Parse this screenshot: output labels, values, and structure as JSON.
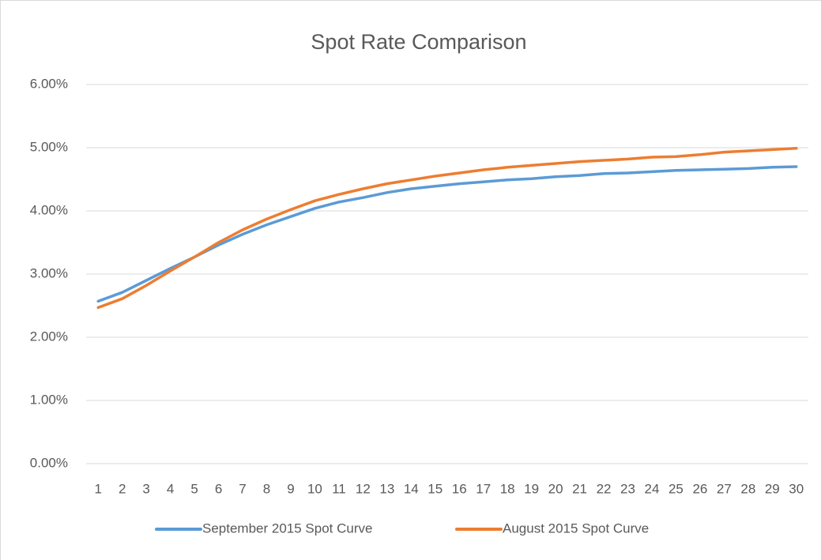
{
  "chart_data": {
    "type": "line",
    "title": "Spot Rate Comparison",
    "categories": [
      "1",
      "2",
      "3",
      "4",
      "5",
      "6",
      "7",
      "8",
      "9",
      "10",
      "11",
      "12",
      "13",
      "14",
      "15",
      "16",
      "17",
      "18",
      "19",
      "20",
      "21",
      "22",
      "23",
      "24",
      "25",
      "26",
      "27",
      "28",
      "29",
      "30"
    ],
    "series": [
      {
        "name": "September 2015 Spot Curve",
        "color": "#5b9bd5",
        "values": [
          2.57,
          2.71,
          2.9,
          3.09,
          3.27,
          3.46,
          3.63,
          3.78,
          3.91,
          4.04,
          4.14,
          4.21,
          4.29,
          4.35,
          4.39,
          4.43,
          4.46,
          4.49,
          4.51,
          4.54,
          4.56,
          4.59,
          4.6,
          4.62,
          4.64,
          4.65,
          4.66,
          4.67,
          4.69,
          4.7
        ]
      },
      {
        "name": "August 2015 Spot Curve",
        "color": "#ed7d31",
        "values": [
          2.47,
          2.61,
          2.82,
          3.05,
          3.27,
          3.5,
          3.7,
          3.87,
          4.02,
          4.16,
          4.26,
          4.35,
          4.43,
          4.49,
          4.55,
          4.6,
          4.65,
          4.69,
          4.72,
          4.75,
          4.78,
          4.8,
          4.82,
          4.85,
          4.86,
          4.89,
          4.93,
          4.95,
          4.97,
          4.99
        ]
      }
    ],
    "ylim": [
      0,
      6
    ],
    "yticks": [
      {
        "value": 0,
        "label": "0.00%"
      },
      {
        "value": 1,
        "label": "1.00%"
      },
      {
        "value": 2,
        "label": "2.00%"
      },
      {
        "value": 3,
        "label": "3.00%"
      },
      {
        "value": 4,
        "label": "4.00%"
      },
      {
        "value": 5,
        "label": "5.00%"
      },
      {
        "value": 6,
        "label": "6.00%"
      }
    ],
    "grid": true,
    "legend": "bottom"
  }
}
